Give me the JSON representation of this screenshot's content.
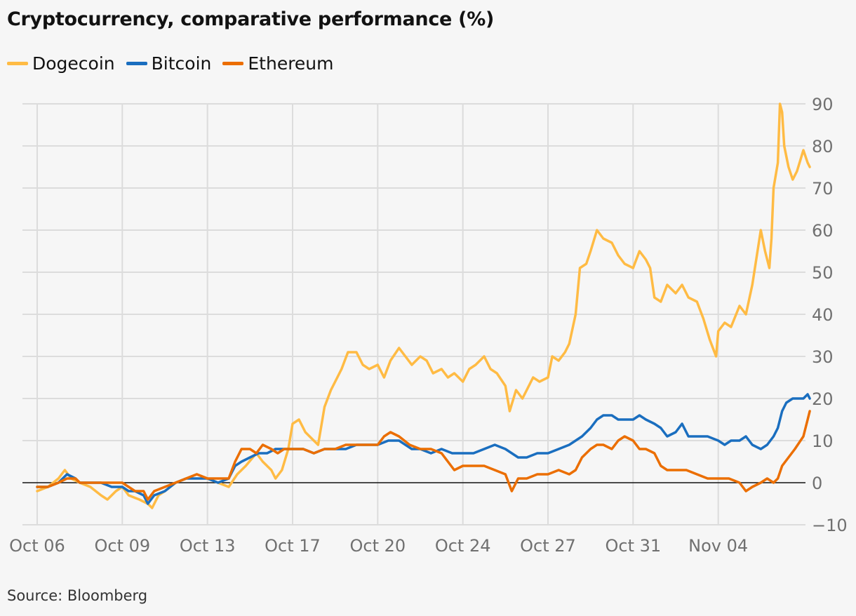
{
  "chart_data": {
    "type": "line",
    "title": "Cryptocurrency, comparative performance (%)",
    "source": "Source: Bloomberg",
    "ylabel": "",
    "xlabel": "",
    "ylim": [
      -10,
      90
    ],
    "yticks": [
      90,
      80,
      70,
      60,
      50,
      40,
      30,
      20,
      10,
      0,
      -10
    ],
    "xlim": [
      0,
      35
    ],
    "xticks": [
      {
        "label": "Oct 06",
        "day": 0
      },
      {
        "label": "Oct 09",
        "day": 4
      },
      {
        "label": "Oct 13",
        "day": 8
      },
      {
        "label": "Oct 17",
        "day": 12
      },
      {
        "label": "Oct 20",
        "day": 16
      },
      {
        "label": "Oct 24",
        "day": 20
      },
      {
        "label": "Oct 27",
        "day": 24
      },
      {
        "label": "Oct 31",
        "day": 28
      },
      {
        "label": "Nov 04",
        "day": 32
      }
    ],
    "grid": true,
    "legend_position": "top-left",
    "series": [
      {
        "name": "Dogecoin",
        "color": "#ffbb44",
        "points": [
          [
            0,
            -2
          ],
          [
            0.5,
            -1
          ],
          [
            1,
            1
          ],
          [
            1.3,
            3
          ],
          [
            1.6,
            1
          ],
          [
            2,
            0
          ],
          [
            2.5,
            -1
          ],
          [
            3,
            -3
          ],
          [
            3.3,
            -4
          ],
          [
            3.7,
            -2
          ],
          [
            4,
            -1
          ],
          [
            4.3,
            -3
          ],
          [
            4.8,
            -4
          ],
          [
            5.2,
            -5
          ],
          [
            5.4,
            -6
          ],
          [
            5.7,
            -3
          ],
          [
            6,
            -2
          ],
          [
            6.5,
            0
          ],
          [
            7,
            1
          ],
          [
            7.5,
            2
          ],
          [
            8,
            1
          ],
          [
            8.5,
            0
          ],
          [
            9,
            -1
          ],
          [
            9.4,
            2
          ],
          [
            9.8,
            4
          ],
          [
            10.3,
            7
          ],
          [
            10.6,
            5
          ],
          [
            11,
            3
          ],
          [
            11.2,
            1
          ],
          [
            11.5,
            3
          ],
          [
            11.8,
            8
          ],
          [
            12,
            14
          ],
          [
            12.3,
            15
          ],
          [
            12.6,
            12
          ],
          [
            13,
            10
          ],
          [
            13.2,
            9
          ],
          [
            13.5,
            18
          ],
          [
            13.8,
            22
          ],
          [
            14,
            24
          ],
          [
            14.3,
            27
          ],
          [
            14.6,
            31
          ],
          [
            15,
            31
          ],
          [
            15.3,
            28
          ],
          [
            15.6,
            27
          ],
          [
            16,
            28
          ],
          [
            16.3,
            25
          ],
          [
            16.6,
            29
          ],
          [
            17,
            32
          ],
          [
            17.3,
            30
          ],
          [
            17.6,
            28
          ],
          [
            18,
            30
          ],
          [
            18.3,
            29
          ],
          [
            18.6,
            26
          ],
          [
            19,
            27
          ],
          [
            19.3,
            25
          ],
          [
            19.6,
            26
          ],
          [
            20,
            24
          ],
          [
            20.3,
            27
          ],
          [
            20.6,
            28
          ],
          [
            21,
            30
          ],
          [
            21.3,
            27
          ],
          [
            21.6,
            26
          ],
          [
            22,
            23
          ],
          [
            22.2,
            17
          ],
          [
            22.5,
            22
          ],
          [
            22.8,
            20
          ],
          [
            23,
            22
          ],
          [
            23.3,
            25
          ],
          [
            23.6,
            24
          ],
          [
            24,
            25
          ],
          [
            24.2,
            30
          ],
          [
            24.5,
            29
          ],
          [
            24.8,
            31
          ],
          [
            25,
            33
          ],
          [
            25.3,
            40
          ],
          [
            25.5,
            51
          ],
          [
            25.8,
            52
          ],
          [
            26,
            55
          ],
          [
            26.3,
            60
          ],
          [
            26.6,
            58
          ],
          [
            27,
            57
          ],
          [
            27.3,
            54
          ],
          [
            27.6,
            52
          ],
          [
            28,
            51
          ],
          [
            28.3,
            55
          ],
          [
            28.6,
            53
          ],
          [
            28.8,
            51
          ],
          [
            29,
            44
          ],
          [
            29.3,
            43
          ],
          [
            29.6,
            47
          ],
          [
            30,
            45
          ],
          [
            30.3,
            47
          ],
          [
            30.6,
            44
          ],
          [
            31,
            43
          ],
          [
            31.3,
            39
          ],
          [
            31.6,
            34
          ],
          [
            31.9,
            30
          ],
          [
            32,
            36
          ],
          [
            32.3,
            38
          ],
          [
            32.6,
            37
          ],
          [
            33,
            42
          ],
          [
            33.3,
            40
          ],
          [
            33.6,
            47
          ],
          [
            34,
            60
          ],
          [
            34.2,
            55
          ],
          [
            34.4,
            51
          ],
          [
            34.5,
            58
          ],
          [
            34.6,
            70
          ],
          [
            34.8,
            76
          ],
          [
            34.9,
            90
          ],
          [
            35,
            88
          ],
          [
            35.1,
            80
          ],
          [
            35.3,
            75
          ],
          [
            35.5,
            72
          ],
          [
            35.7,
            74
          ],
          [
            36,
            79
          ],
          [
            36.2,
            76
          ],
          [
            36.3,
            75
          ]
        ]
      },
      {
        "name": "Bitcoin",
        "color": "#1a6ebf",
        "points": [
          [
            0,
            -1
          ],
          [
            0.5,
            -1
          ],
          [
            1,
            0
          ],
          [
            1.4,
            2
          ],
          [
            1.8,
            1
          ],
          [
            2,
            0
          ],
          [
            2.5,
            0
          ],
          [
            3,
            0
          ],
          [
            3.5,
            -1
          ],
          [
            4,
            -1
          ],
          [
            4.3,
            -2
          ],
          [
            4.6,
            -2
          ],
          [
            5,
            -3
          ],
          [
            5.2,
            -5
          ],
          [
            5.5,
            -3
          ],
          [
            6,
            -2
          ],
          [
            6.5,
            0
          ],
          [
            7,
            1
          ],
          [
            7.5,
            1
          ],
          [
            8,
            1
          ],
          [
            8.5,
            0
          ],
          [
            9,
            1
          ],
          [
            9.3,
            4
          ],
          [
            9.6,
            5
          ],
          [
            10,
            6
          ],
          [
            10.4,
            7
          ],
          [
            10.8,
            7
          ],
          [
            11.2,
            8
          ],
          [
            11.6,
            8
          ],
          [
            12,
            8
          ],
          [
            12.5,
            8
          ],
          [
            13,
            7
          ],
          [
            13.5,
            8
          ],
          [
            14,
            8
          ],
          [
            14.5,
            8
          ],
          [
            15,
            9
          ],
          [
            15.5,
            9
          ],
          [
            16,
            9
          ],
          [
            16.5,
            10
          ],
          [
            17,
            10
          ],
          [
            17.3,
            9
          ],
          [
            17.6,
            8
          ],
          [
            18,
            8
          ],
          [
            18.5,
            7
          ],
          [
            19,
            8
          ],
          [
            19.5,
            7
          ],
          [
            20,
            7
          ],
          [
            20.5,
            7
          ],
          [
            21,
            8
          ],
          [
            21.5,
            9
          ],
          [
            22,
            8
          ],
          [
            22.3,
            7
          ],
          [
            22.6,
            6
          ],
          [
            23,
            6
          ],
          [
            23.5,
            7
          ],
          [
            24,
            7
          ],
          [
            24.5,
            8
          ],
          [
            25,
            9
          ],
          [
            25.3,
            10
          ],
          [
            25.6,
            11
          ],
          [
            26,
            13
          ],
          [
            26.3,
            15
          ],
          [
            26.6,
            16
          ],
          [
            27,
            16
          ],
          [
            27.3,
            15
          ],
          [
            27.6,
            15
          ],
          [
            28,
            15
          ],
          [
            28.3,
            16
          ],
          [
            28.6,
            15
          ],
          [
            29,
            14
          ],
          [
            29.3,
            13
          ],
          [
            29.6,
            11
          ],
          [
            30,
            12
          ],
          [
            30.3,
            14
          ],
          [
            30.6,
            11
          ],
          [
            31,
            11
          ],
          [
            31.5,
            11
          ],
          [
            32,
            10
          ],
          [
            32.3,
            9
          ],
          [
            32.6,
            10
          ],
          [
            33,
            10
          ],
          [
            33.3,
            11
          ],
          [
            33.6,
            9
          ],
          [
            34,
            8
          ],
          [
            34.3,
            9
          ],
          [
            34.6,
            11
          ],
          [
            34.8,
            13
          ],
          [
            35,
            17
          ],
          [
            35.2,
            19
          ],
          [
            35.5,
            20
          ],
          [
            36,
            20
          ],
          [
            36.2,
            21
          ],
          [
            36.3,
            20
          ]
        ]
      },
      {
        "name": "Ethereum",
        "color": "#eb6e00",
        "points": [
          [
            0,
            -1
          ],
          [
            0.5,
            -1
          ],
          [
            1,
            0
          ],
          [
            1.4,
            1
          ],
          [
            1.8,
            1
          ],
          [
            2,
            0
          ],
          [
            2.5,
            0
          ],
          [
            3,
            0
          ],
          [
            3.5,
            0
          ],
          [
            4,
            0
          ],
          [
            4.3,
            -1
          ],
          [
            4.6,
            -2
          ],
          [
            5,
            -2
          ],
          [
            5.2,
            -4
          ],
          [
            5.5,
            -2
          ],
          [
            6,
            -1
          ],
          [
            6.5,
            0
          ],
          [
            7,
            1
          ],
          [
            7.5,
            2
          ],
          [
            8,
            1
          ],
          [
            8.5,
            1
          ],
          [
            9,
            1
          ],
          [
            9.3,
            5
          ],
          [
            9.6,
            8
          ],
          [
            10,
            8
          ],
          [
            10.3,
            7
          ],
          [
            10.6,
            9
          ],
          [
            11,
            8
          ],
          [
            11.3,
            7
          ],
          [
            11.6,
            8
          ],
          [
            12,
            8
          ],
          [
            12.5,
            8
          ],
          [
            13,
            7
          ],
          [
            13.5,
            8
          ],
          [
            14,
            8
          ],
          [
            14.5,
            9
          ],
          [
            15,
            9
          ],
          [
            15.5,
            9
          ],
          [
            16,
            9
          ],
          [
            16.3,
            11
          ],
          [
            16.6,
            12
          ],
          [
            17,
            11
          ],
          [
            17.5,
            9
          ],
          [
            18,
            8
          ],
          [
            18.5,
            8
          ],
          [
            19,
            7
          ],
          [
            19.3,
            5
          ],
          [
            19.6,
            3
          ],
          [
            20,
            4
          ],
          [
            20.5,
            4
          ],
          [
            21,
            4
          ],
          [
            21.5,
            3
          ],
          [
            22,
            2
          ],
          [
            22.3,
            -2
          ],
          [
            22.6,
            1
          ],
          [
            23,
            1
          ],
          [
            23.5,
            2
          ],
          [
            24,
            2
          ],
          [
            24.5,
            3
          ],
          [
            25,
            2
          ],
          [
            25.3,
            3
          ],
          [
            25.6,
            6
          ],
          [
            26,
            8
          ],
          [
            26.3,
            9
          ],
          [
            26.6,
            9
          ],
          [
            27,
            8
          ],
          [
            27.3,
            10
          ],
          [
            27.6,
            11
          ],
          [
            28,
            10
          ],
          [
            28.3,
            8
          ],
          [
            28.6,
            8
          ],
          [
            29,
            7
          ],
          [
            29.3,
            4
          ],
          [
            29.6,
            3
          ],
          [
            30,
            3
          ],
          [
            30.5,
            3
          ],
          [
            31,
            2
          ],
          [
            31.5,
            1
          ],
          [
            32,
            1
          ],
          [
            32.5,
            1
          ],
          [
            33,
            0
          ],
          [
            33.3,
            -2
          ],
          [
            33.6,
            -1
          ],
          [
            34,
            0
          ],
          [
            34.3,
            1
          ],
          [
            34.6,
            0
          ],
          [
            34.8,
            1
          ],
          [
            35,
            4
          ],
          [
            35.3,
            6
          ],
          [
            35.6,
            8
          ],
          [
            36,
            11
          ],
          [
            36.2,
            15
          ],
          [
            36.3,
            17
          ]
        ]
      }
    ]
  }
}
